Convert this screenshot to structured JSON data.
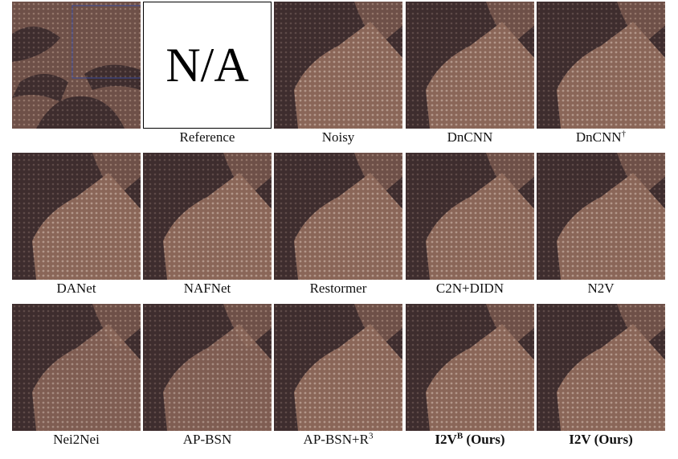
{
  "figure": {
    "panels": [
      {
        "caption": "Reference",
        "placeholder": "N/A"
      },
      {
        "caption": "Noisy"
      },
      {
        "caption": "DnCNN"
      },
      {
        "caption": "DnCNN",
        "superscript": "†"
      },
      {
        "caption": "DANet"
      },
      {
        "caption": "NAFNet"
      },
      {
        "caption": "Restormer"
      },
      {
        "caption": "C2N+DIDN"
      },
      {
        "caption": "N2V"
      },
      {
        "caption": "Nei2Nei"
      },
      {
        "caption": "AP-BSN"
      },
      {
        "caption": "AP-BSN+R",
        "superscript": "3"
      },
      {
        "caption": "I2V",
        "superscript": "B",
        "suffix": " (Ours)",
        "bold": true
      },
      {
        "caption": "I2V (Ours)",
        "bold": true
      }
    ]
  }
}
